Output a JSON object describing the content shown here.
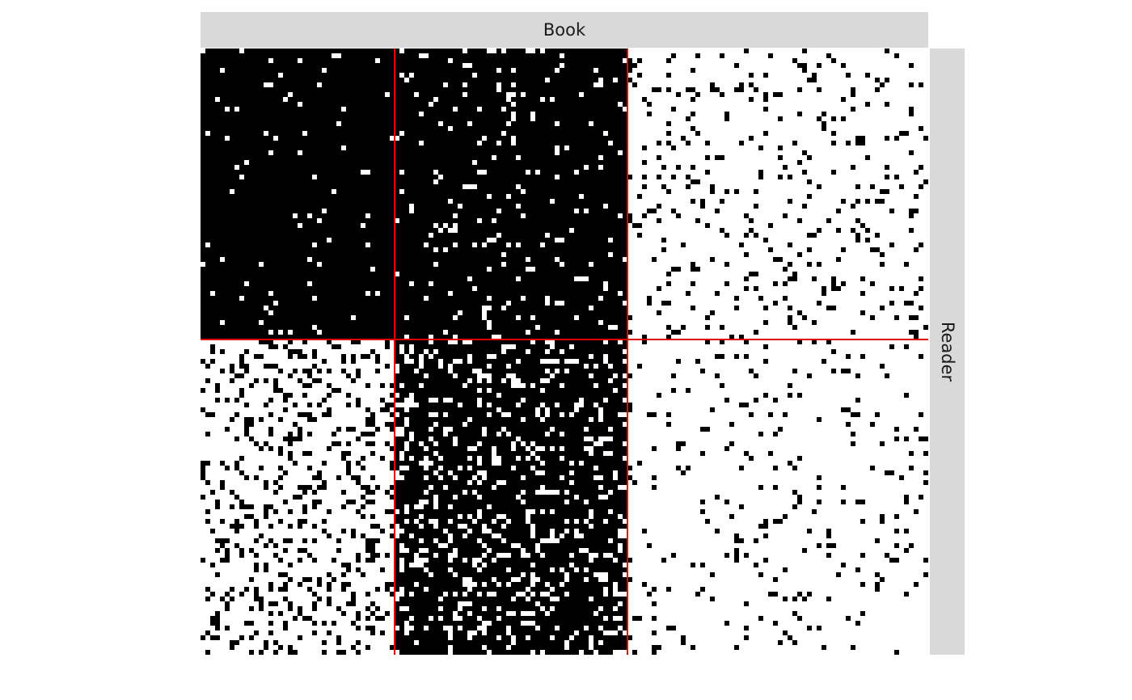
{
  "chart_data": {
    "type": "matrix",
    "xlabel": "Book",
    "ylabel": "Reader",
    "row_blocks": [
      60,
      65
    ],
    "col_blocks": [
      40,
      48,
      62
    ],
    "density": [
      [
        0.97,
        0.93,
        0.1
      ],
      [
        0.2,
        0.8,
        0.06
      ]
    ],
    "fill_color": "#000000",
    "empty_color": "#ffffff",
    "separator_color": "#e00000"
  }
}
